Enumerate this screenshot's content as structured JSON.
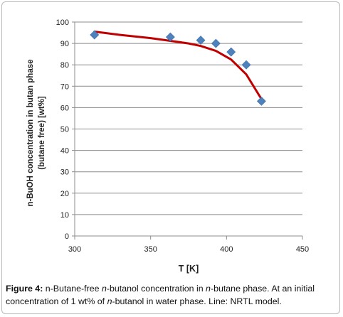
{
  "chart_data": {
    "type": "scatter",
    "xlabel": "T [K]",
    "ylabel_line1": "n-BuOH concentration in butan phase",
    "ylabel_line2": "(butane free) [wt%]",
    "xlim": [
      300,
      450
    ],
    "ylim": [
      0,
      100
    ],
    "x_ticks": [
      "300",
      "350",
      "400",
      "450"
    ],
    "y_ticks": [
      "0",
      "10",
      "20",
      "30",
      "40",
      "50",
      "60",
      "70",
      "80",
      "90",
      "100"
    ],
    "grid": "horizontal",
    "series": [
      {
        "type": "scatter",
        "marker": "diamond",
        "color": "#4f81bd",
        "x": [
          313,
          363,
          383,
          393,
          403,
          413,
          423
        ],
        "y": [
          94,
          93,
          91.5,
          90,
          86,
          80,
          63
        ]
      },
      {
        "type": "line",
        "color": "#c00000",
        "x": [
          313,
          330,
          350,
          363,
          375,
          383,
          393,
          403,
          413,
          423
        ],
        "y": [
          95.5,
          94,
          92.5,
          91.2,
          90,
          88.8,
          86.5,
          82.5,
          75.5,
          64
        ]
      }
    ]
  },
  "caption": {
    "label": "Figure 4:",
    "segments": [
      {
        "text": " n-Butane-free ",
        "italic": false
      },
      {
        "text": "n",
        "italic": true
      },
      {
        "text": "-butanol concentration in ",
        "italic": false
      },
      {
        "text": "n",
        "italic": true
      },
      {
        "text": "-butane phase. At an initial concentration of 1 wt% of ",
        "italic": false
      },
      {
        "text": "n",
        "italic": true
      },
      {
        "text": "-butanol in water phase. Line: NRTL model.",
        "italic": false
      }
    ]
  }
}
